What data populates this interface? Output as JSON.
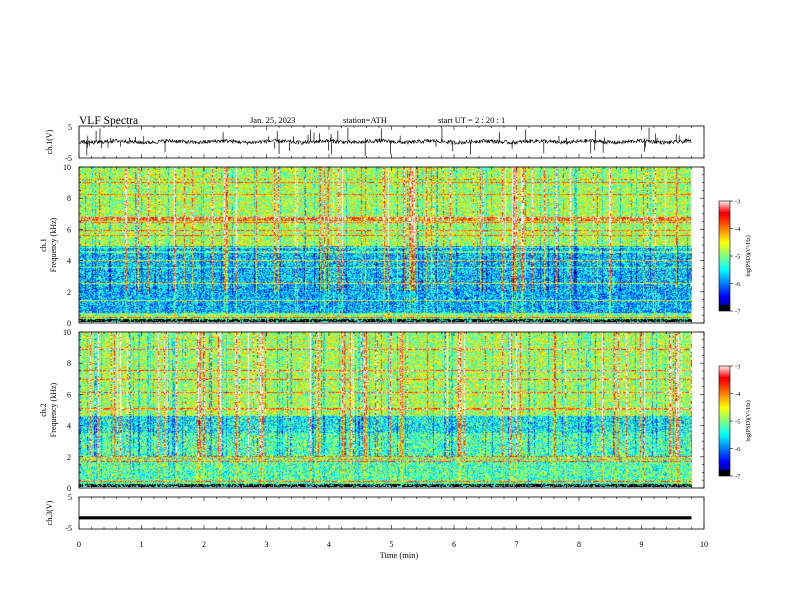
{
  "header": {
    "title": "VLF  Spectra",
    "date": "Jan. 25, 2023",
    "station": "station=ATH",
    "start": "start  UT  =    2  : 20 : 1"
  },
  "chart_data": [
    {
      "type": "line",
      "name_label": "ch.1(V)",
      "ylabel": "ch.1(V)",
      "ylim": [
        -5,
        5
      ],
      "ytick_labels": [
        "5",
        "-5"
      ],
      "xlim": [
        0,
        10
      ],
      "description_values": {
        "baseline": 0.1,
        "noise_amplitude": 0.6,
        "spike_count": 60
      }
    },
    {
      "type": "heatmap",
      "ylabel_channel": "ch.1",
      "ylabel": "Frequency  (kHz)",
      "ylim": [
        0,
        10
      ],
      "ytick_labels": [
        "0",
        "2",
        "4",
        "6",
        "8",
        "10"
      ],
      "xlim": [
        0,
        9.8
      ],
      "colorbar": {
        "label": "log(PSD)(V²/Hz)",
        "ticks": [
          "-3",
          "-4",
          "-5",
          "-6",
          "-7"
        ],
        "range": [
          -7,
          -3
        ]
      }
    },
    {
      "type": "heatmap",
      "ylabel_channel": "ch.2",
      "ylabel": "Frequency  (kHz)",
      "ylim": [
        0,
        10
      ],
      "ytick_labels": [
        "0",
        "2",
        "4",
        "6",
        "8",
        "10"
      ],
      "xlim": [
        0,
        9.8
      ],
      "colorbar": {
        "label": "log(PSD)(V²/Hz)",
        "ticks": [
          "-3",
          "-4",
          "-5",
          "-6",
          "-7"
        ],
        "range": [
          -7,
          -3
        ]
      }
    },
    {
      "type": "line",
      "ylabel": "ch.3(V)",
      "ylim": [
        -5,
        5
      ],
      "ytick_labels": [
        "5",
        "-5"
      ],
      "xlim": [
        0,
        10
      ],
      "xlabel": "Time  (min)",
      "xtick_labels": [
        "0",
        "1",
        "2",
        "3",
        "4",
        "5",
        "6",
        "7",
        "8",
        "9",
        "10"
      ],
      "description_values": {
        "baseline": -1.5
      }
    }
  ],
  "colors": {
    "axis": "#000000",
    "signal": "#000000"
  }
}
